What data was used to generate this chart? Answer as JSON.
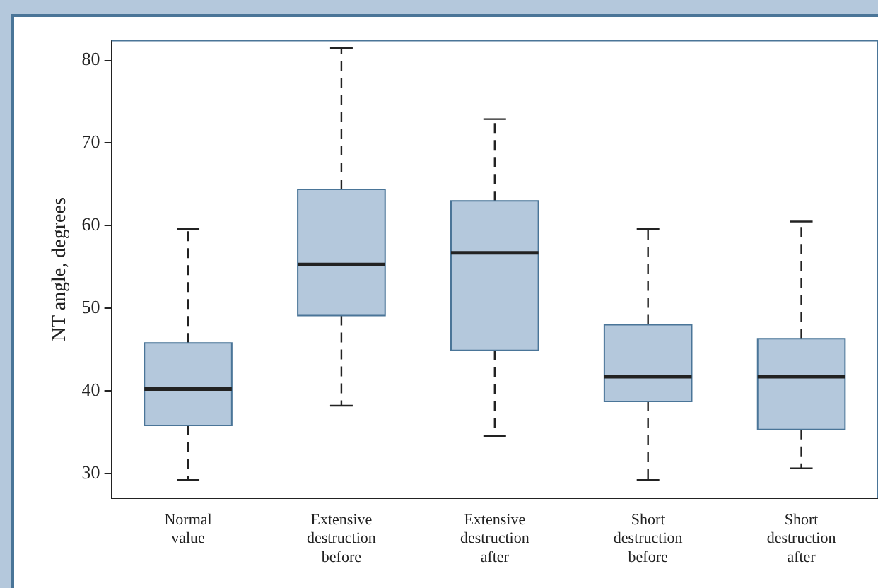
{
  "chart_data": {
    "type": "box",
    "ylabel": "NT angle, degrees",
    "categories": [
      "Normal value",
      "Extensive destruction before",
      "Extensive destruction after",
      "Short destruction before",
      "Short destruction after"
    ],
    "color": "#b4c8dc",
    "boxes": [
      {
        "low": 29.2,
        "q1": 35.8,
        "median": 40.2,
        "q3": 45.8,
        "high": 59.6
      },
      {
        "low": 38.2,
        "q1": 49.1,
        "median": 55.3,
        "q3": 64.4,
        "high": 81.5
      },
      {
        "low": 34.5,
        "q1": 44.9,
        "median": 56.7,
        "q3": 63.0,
        "high": 72.9
      },
      {
        "low": 29.2,
        "q1": 38.7,
        "median": 41.7,
        "q3": 48.0,
        "high": 59.6
      },
      {
        "low": 30.6,
        "q1": 35.3,
        "median": 41.7,
        "q3": 46.3,
        "high": 60.5
      }
    ],
    "ylim": [
      27,
      82.4
    ],
    "yticks": [
      30,
      40,
      50,
      60,
      70,
      80
    ],
    "grid": false,
    "legend": false
  }
}
